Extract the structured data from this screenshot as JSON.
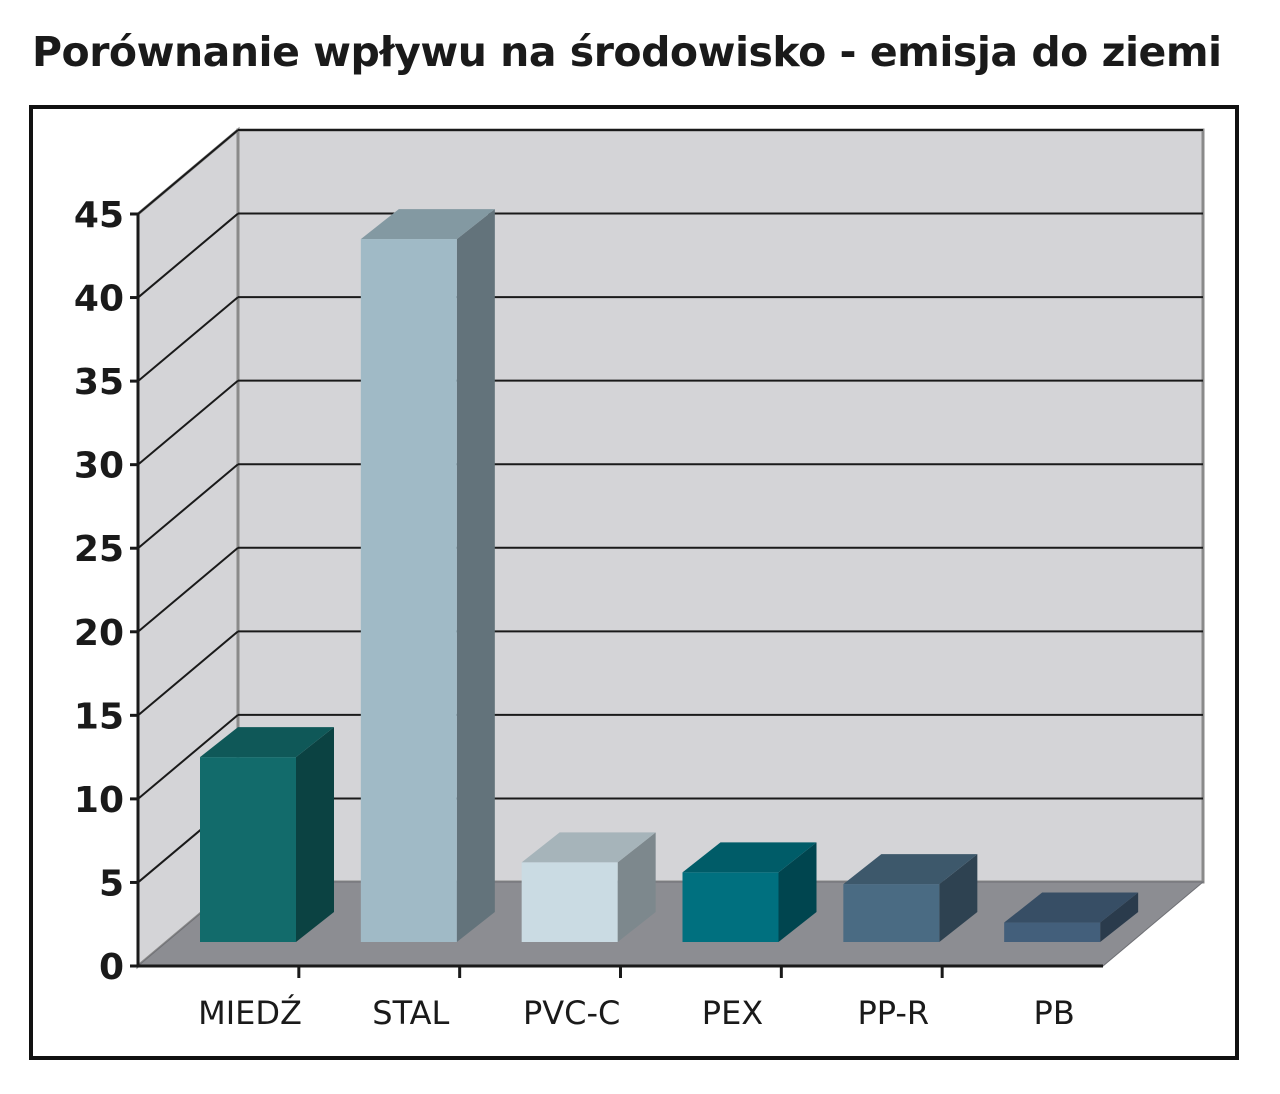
{
  "chart_data": {
    "type": "bar",
    "title": "Porównanie wpływu na środowisko - emisja do ziemi",
    "categories": [
      "MIEDŹ",
      "STAL",
      "PVC-C",
      "PEX",
      "PP-R",
      "PB"
    ],
    "values": [
      12.5,
      43.5,
      6.2,
      5.6,
      4.9,
      2.6
    ],
    "ylim": [
      0,
      45
    ],
    "yticks": [
      0,
      5,
      10,
      15,
      20,
      25,
      30,
      35,
      40,
      45
    ],
    "grid": true,
    "legend": "none",
    "style": "3d-column",
    "colors": {
      "MIEDŹ": "#126b6b",
      "STAL": "#a0bac6",
      "PVC-C": "#cadbe3",
      "PEX": "#00707f",
      "PP-R": "#4a6b83",
      "PB": "#435f7b"
    },
    "wall_color": "#d4d4d7",
    "floor_color": "#8c8d92"
  }
}
